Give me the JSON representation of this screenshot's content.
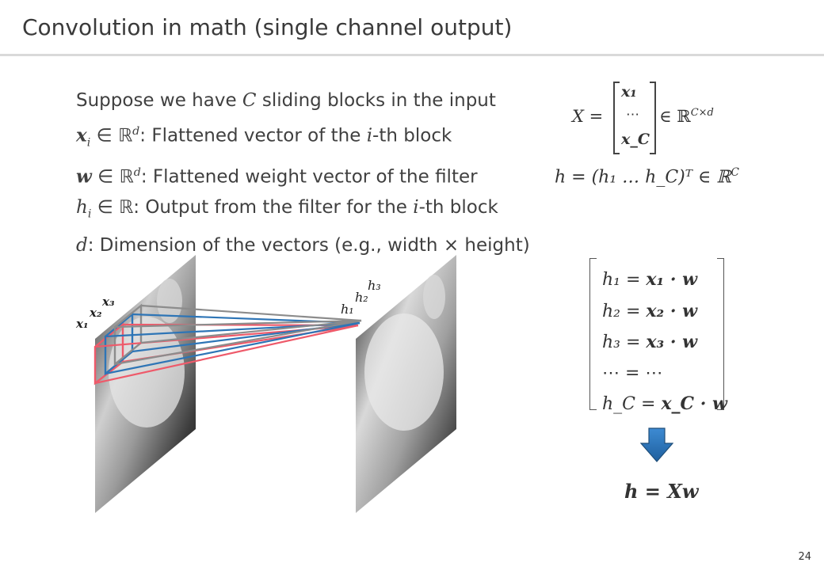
{
  "slide": {
    "title": "Convolution in math (single channel output)",
    "page_number": "24"
  },
  "bullets": {
    "b1": {
      "pre": "Suppose we have ",
      "var": "C",
      "post": " sliding blocks in the input"
    },
    "b2": {
      "var": "x",
      "sub": "i",
      "in": " ∈ ℝ",
      "sup": "d",
      "text": ": Flattened vector of the ",
      "ivar": "i",
      "post": "-th block"
    },
    "b3": {
      "var": "w",
      "in": " ∈ ℝ",
      "sup": "d",
      "text": ": Flattened weight vector of the filter"
    },
    "b4": {
      "var": "h",
      "sub": "i",
      "in": " ∈ ℝ",
      "text": ": Output from the filter for the ",
      "ivar": "i",
      "post": "-th block"
    },
    "b5": {
      "var": "d",
      "text": ": Dimension of the vectors (e.g., width × height)"
    }
  },
  "matrix_eq": {
    "lhs": "X =",
    "rows": [
      "x₁",
      "⋯",
      "x_C"
    ],
    "rhs": "∈ ℝ",
    "rhs_sup": "C×d"
  },
  "h_vector_eq": {
    "text": "h = (h₁ … h_C)ᵀ ∈ ℝ",
    "sup": "C"
  },
  "equation_system": {
    "rows": [
      {
        "lhs": "h₁",
        "rhs": "x₁ · w"
      },
      {
        "lhs": "h₂",
        "rhs": "x₂ · w"
      },
      {
        "lhs": "h₃",
        "rhs": "x₃ · w"
      },
      {
        "lhs": "⋯",
        "rhs": "⋯"
      },
      {
        "lhs": "h_C",
        "rhs": "x_C · w"
      }
    ]
  },
  "result_eq": "h = Xw",
  "diagram": {
    "input_labels": [
      "x₁",
      "x₂",
      "x₃"
    ],
    "output_labels": [
      "h₁",
      "h₂",
      "h₃"
    ]
  },
  "colors": {
    "red": "#ee5a6a",
    "blue": "#2e75b6",
    "gray": "#8c8c8c",
    "arrow": "#2e75b6"
  }
}
